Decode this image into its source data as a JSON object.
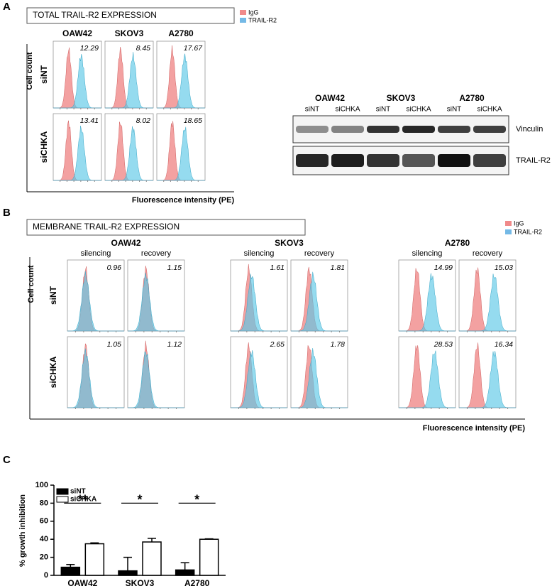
{
  "panel_a": {
    "label": "A",
    "title": "TOTAL TRAIL-R2 EXPRESSION",
    "legend": [
      "IgG",
      "TRAIL-R2"
    ],
    "columns": [
      "OAW42",
      "SKOV3",
      "A2780"
    ],
    "rows": [
      "siNT",
      "siCHKA"
    ],
    "y_label": "Cell count",
    "x_label": "Fluorescence intensity (PE)",
    "values": [
      [
        12.29,
        8.45,
        17.67
      ],
      [
        13.41,
        8.02,
        18.65
      ]
    ]
  },
  "western_blot": {
    "groups": [
      "OAW42",
      "SKOV3",
      "A2780"
    ],
    "lanes": [
      "siNT",
      "siCHKA",
      "siNT",
      "siCHKA",
      "siNT",
      "siCHKA"
    ],
    "bands": [
      "Vinculin",
      "TRAIL-R2"
    ]
  },
  "panel_b": {
    "label": "B",
    "title": "MEMBRANE TRAIL-R2 EXPRESSION",
    "legend": [
      "IgG",
      "TRAIL-R2"
    ],
    "groups": [
      "OAW42",
      "SKOV3",
      "A2780"
    ],
    "conditions": [
      "silencing",
      "recovery"
    ],
    "rows": [
      "siNT",
      "siCHKA"
    ],
    "y_label": "Cell count",
    "x_label": "Fluorescence intensity (PE)",
    "values": [
      [
        0.96,
        1.15,
        1.61,
        1.81,
        14.99,
        15.03
      ],
      [
        1.05,
        1.12,
        2.65,
        1.78,
        28.53,
        16.34
      ]
    ]
  },
  "chart_data": {
    "type": "bar",
    "panel_label": "C",
    "y_label": "% growth inhibition",
    "categories": [
      "OAW42",
      "SKOV3",
      "A2780"
    ],
    "series": [
      {
        "name": "siNT",
        "color": "#000000",
        "values": [
          9,
          5,
          6
        ],
        "errors": [
          3,
          15,
          8
        ]
      },
      {
        "name": "siCHKA",
        "color": "#ffffff",
        "values": [
          35,
          37,
          40
        ],
        "errors": [
          1,
          4,
          0.5
        ]
      }
    ],
    "significance": [
      "**",
      "*",
      "*"
    ],
    "ylim": [
      0,
      100
    ],
    "yticks": [
      0,
      20,
      40,
      60,
      80,
      100
    ]
  }
}
